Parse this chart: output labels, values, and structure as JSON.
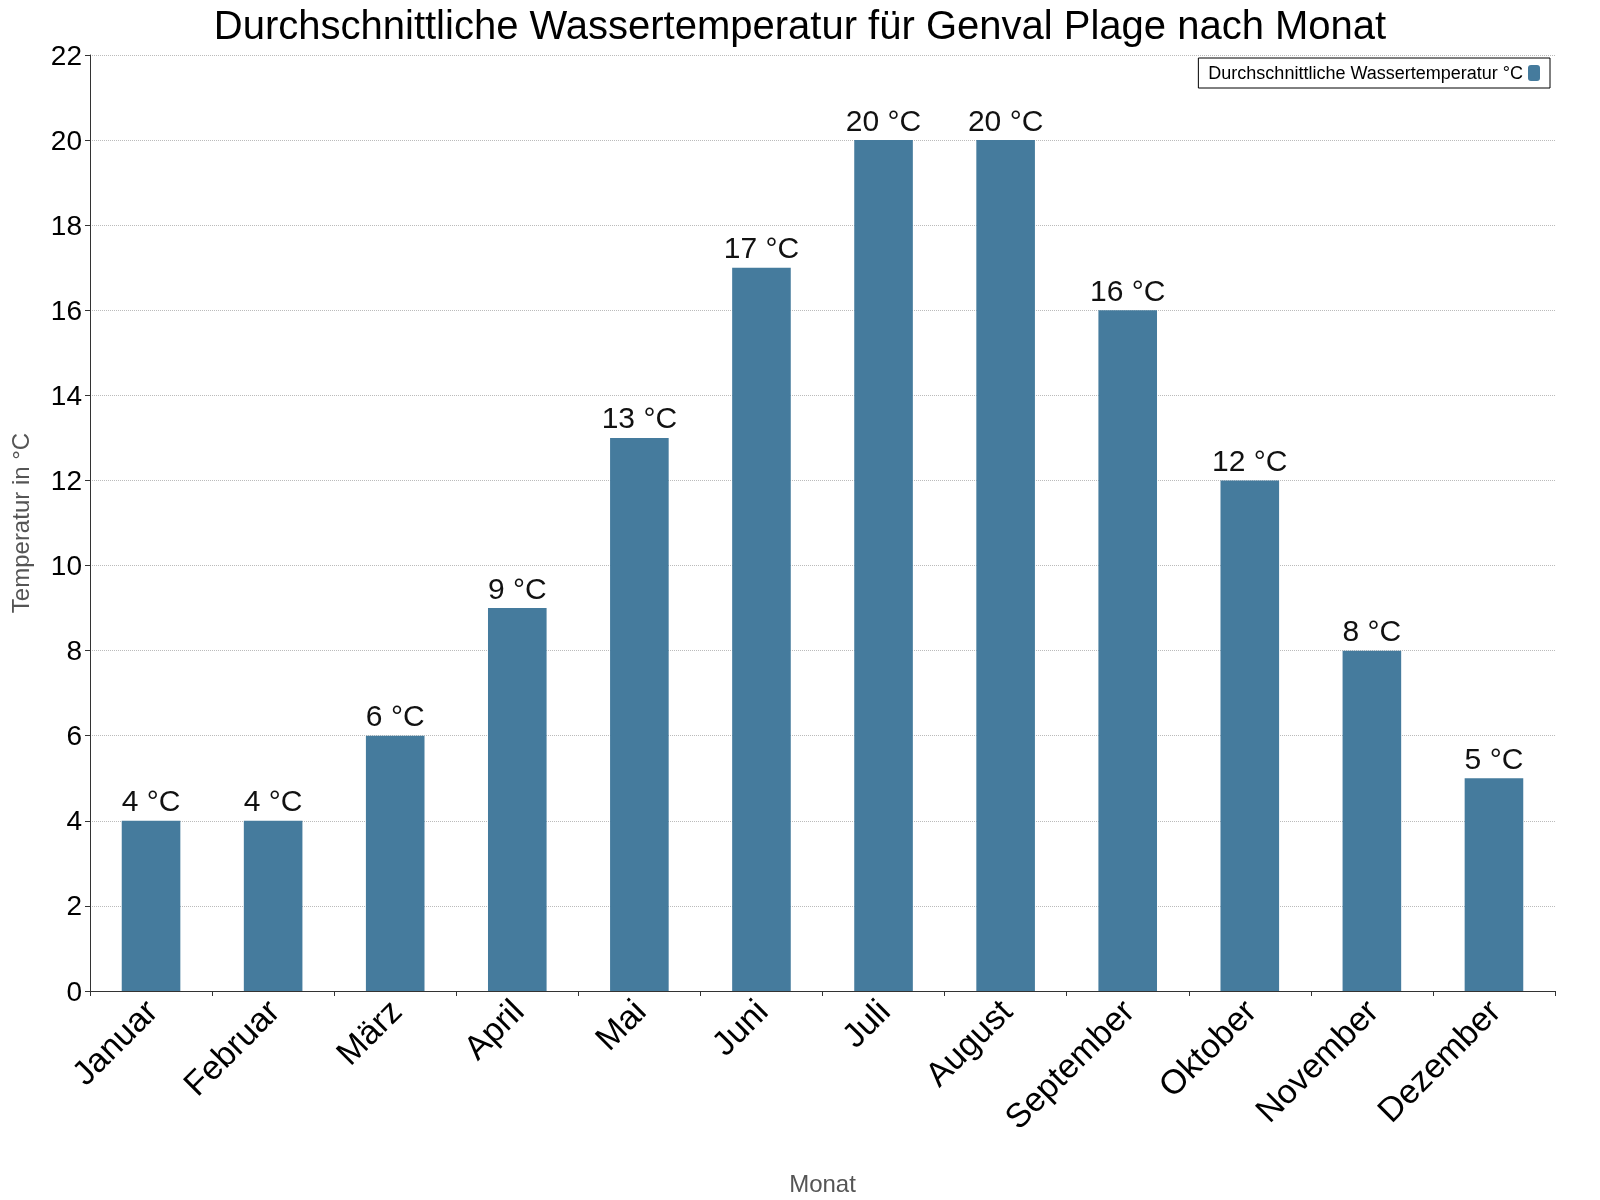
{
  "chart_data": {
    "type": "bar",
    "title": "Durchschnittliche Wassertemperatur für Genval Plage nach Monat",
    "xlabel": "Monat",
    "ylabel": "Temperatur in °C",
    "categories": [
      "Januar",
      "Februar",
      "März",
      "April",
      "Mai",
      "Juni",
      "Juli",
      "August",
      "September",
      "Oktober",
      "November",
      "Dezember"
    ],
    "series": [
      {
        "name": "Durchschnittliche Wassertemperatur °C",
        "color": "#457b9d",
        "values": [
          4,
          4,
          6,
          9,
          13,
          17,
          20,
          20,
          16,
          12,
          8,
          5
        ],
        "value_labels": [
          "4 °C",
          "4 °C",
          "6 °C",
          "9 °C",
          "13 °C",
          "17 °C",
          "20 °C",
          "20 °C",
          "16 °C",
          "12 °C",
          "8 °C",
          "5 °C"
        ]
      }
    ],
    "ylim": [
      0,
      22
    ],
    "yticks": [
      0,
      2,
      4,
      6,
      8,
      10,
      12,
      14,
      16,
      18,
      20,
      22
    ],
    "grid": "y",
    "legend": "top right"
  }
}
